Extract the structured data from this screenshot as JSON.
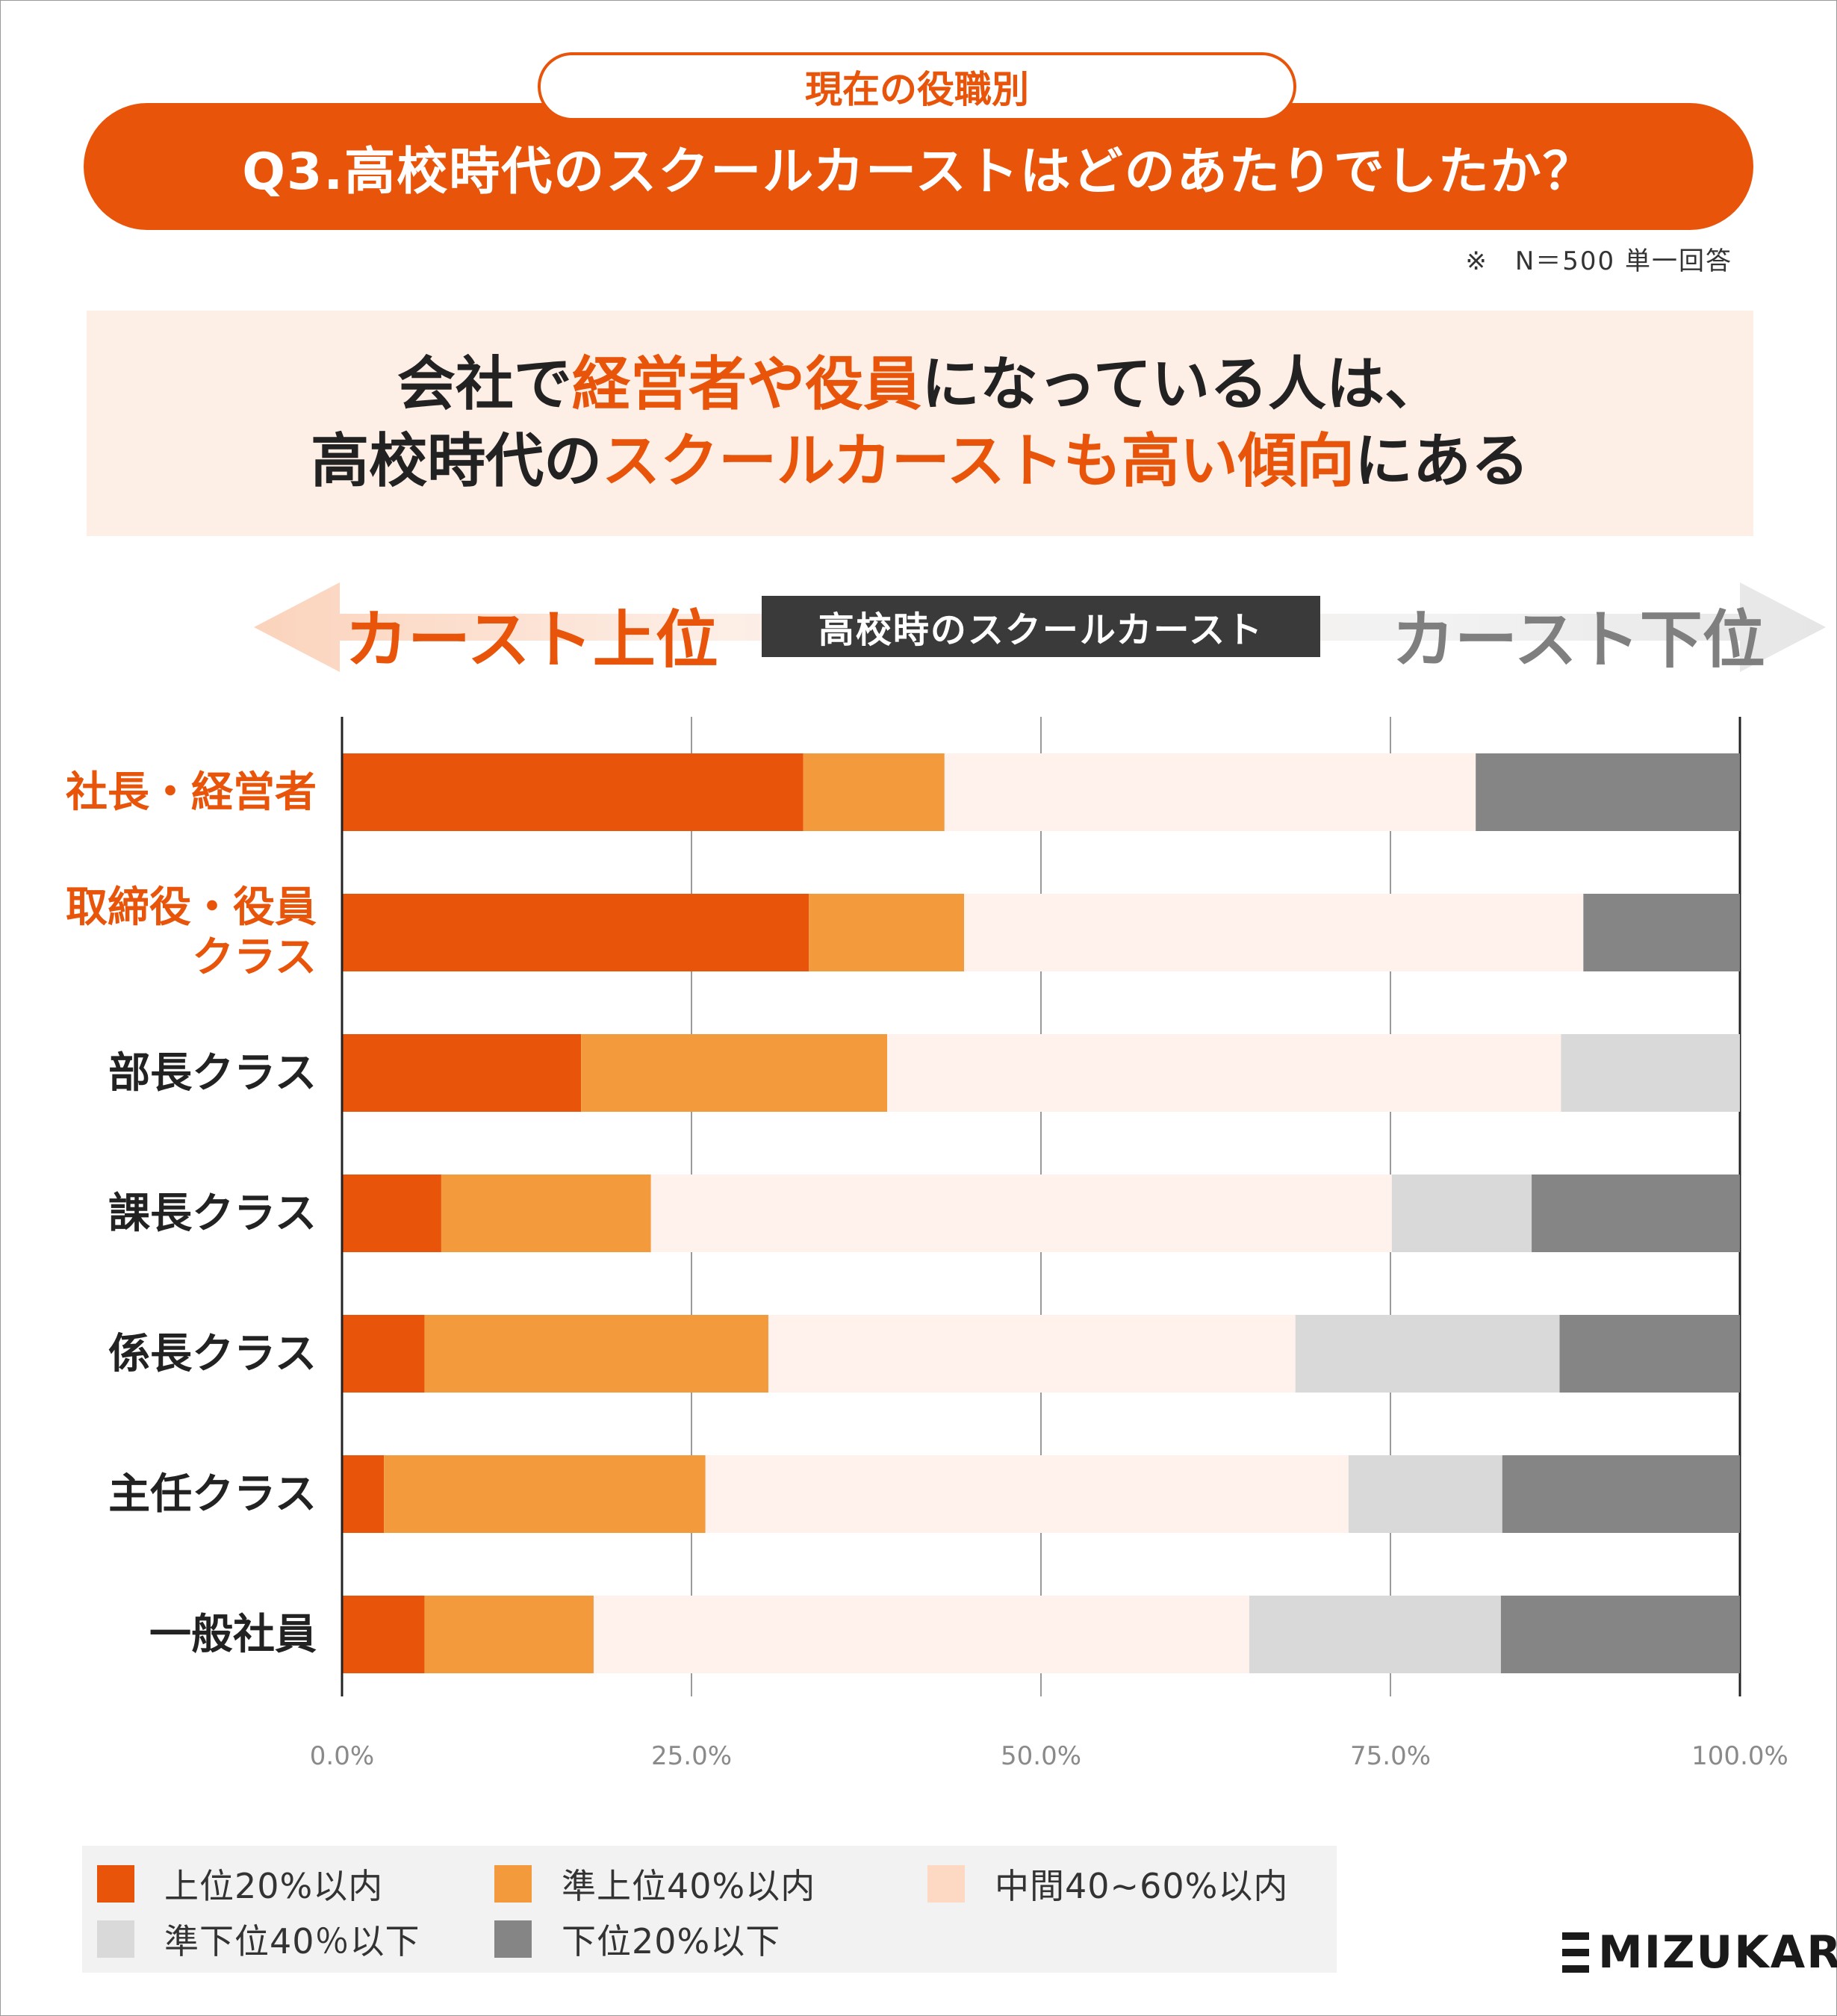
{
  "header": {
    "pill_label": "現在の役職別",
    "question": "Q3.高校時代のスクールカーストはどのあたりでしたか？",
    "note": "※　N＝500 単一回答"
  },
  "headline": {
    "line1_a": "会社で",
    "line1_b": "経営者や役員",
    "line1_c": "になっている人は、",
    "line2_a": "高校時代の",
    "line2_b": "スクールカーストも高い傾向",
    "line2_c": "にある"
  },
  "caste_axis": {
    "top_label": "カースト上位",
    "center_label": "高校時のスクールカースト",
    "bottom_label": "カースト下位"
  },
  "colors": {
    "accent": "#e8540a",
    "s1": "#e8540a",
    "s2": "#f39a3c",
    "s3": "#fff2ec",
    "s4": "#d9d9d9",
    "s5": "#858585"
  },
  "chart_data": {
    "type": "bar",
    "orientation": "horizontal",
    "stacked": true,
    "categories": [
      "社長・経営者",
      "取締役・役員\nクラス",
      "部長クラス",
      "課長クラス",
      "係長クラス",
      "主任クラス",
      "一般社員"
    ],
    "highlight_categories": [
      true,
      true,
      false,
      false,
      false,
      false,
      false
    ],
    "series": [
      {
        "name": "上位20%以内",
        "values": [
          33.0,
          33.4,
          17.1,
          7.1,
          5.9,
          3.0,
          5.9
        ]
      },
      {
        "name": "準上位40%以内",
        "values": [
          10.1,
          11.1,
          21.9,
          15.0,
          24.6,
          23.0,
          12.1
        ]
      },
      {
        "name": "中間40~60%以内",
        "values": [
          38.0,
          44.3,
          48.2,
          53.0,
          37.7,
          46.0,
          46.9
        ]
      },
      {
        "name": "準下位40％以下",
        "values": [
          0.0,
          0.0,
          12.8,
          10.0,
          18.9,
          11.0,
          18.0
        ]
      },
      {
        "name": "下位20%以下",
        "values": [
          18.9,
          11.2,
          0.0,
          14.9,
          12.9,
          17.0,
          17.1
        ]
      }
    ],
    "xlim": [
      0,
      100
    ],
    "xticks": [
      "0.0%",
      "25.0%",
      "50.0%",
      "75.0%",
      "100.0%"
    ],
    "grid": true,
    "legend_position": "bottom"
  },
  "legend": {
    "items": [
      "上位20%以内",
      "準上位40%以内",
      "中間40~60%以内",
      "準下位40％以下",
      "下位20%以下"
    ]
  },
  "brand": "MIZUKARA"
}
